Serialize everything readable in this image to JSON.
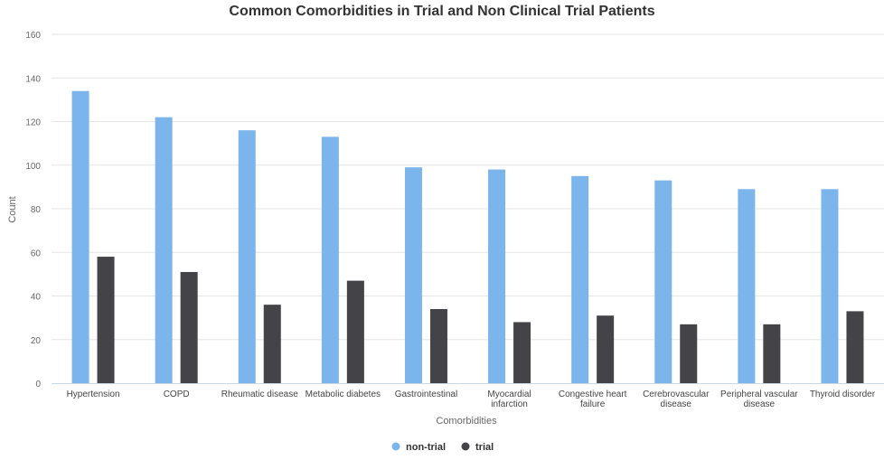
{
  "chart_data": {
    "type": "bar",
    "title": "Common Comorbidities in Trial and Non Clinical Trial Patients",
    "xlabel": "Comorbidities",
    "ylabel": "Count",
    "ylim": [
      0,
      160
    ],
    "yticks": [
      0,
      20,
      40,
      60,
      80,
      100,
      120,
      140,
      160
    ],
    "grid": true,
    "legend_position": "bottom-center",
    "categories": [
      [
        "Hypertension"
      ],
      [
        "COPD"
      ],
      [
        "Rheumatic disease"
      ],
      [
        "Metabolic diabetes"
      ],
      [
        "Gastrointestinal"
      ],
      [
        "Myocardial",
        "infarction"
      ],
      [
        "Congestive heart",
        "failure"
      ],
      [
        "Cerebrovascular",
        "disease"
      ],
      [
        "Peripheral vascular",
        "disease"
      ],
      [
        "Thyroid disorder"
      ]
    ],
    "series": [
      {
        "name": "non-trial",
        "color": "#7cb5ec",
        "values": [
          134,
          122,
          116,
          113,
          99,
          98,
          95,
          93,
          89,
          89
        ]
      },
      {
        "name": "trial",
        "color": "#434348",
        "values": [
          58,
          51,
          36,
          47,
          34,
          28,
          31,
          27,
          27,
          33
        ]
      }
    ]
  }
}
